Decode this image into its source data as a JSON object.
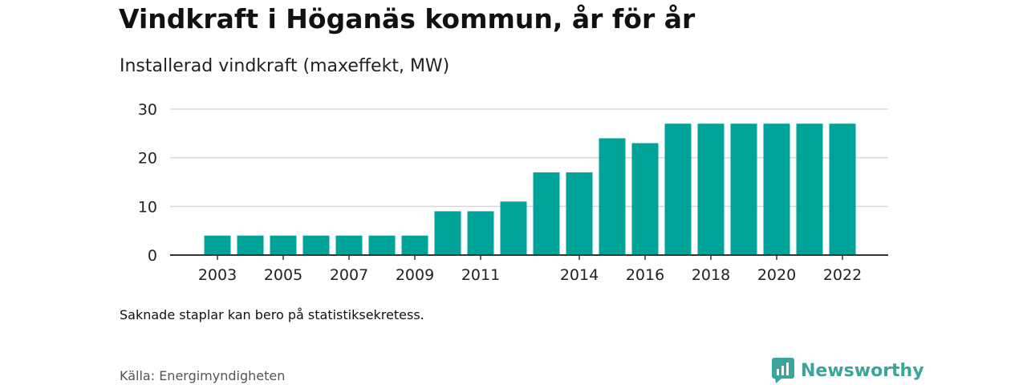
{
  "title": "Vindkraft i Höganäs kommun, år för år",
  "subtitle": "Installerad vindkraft (maxeffekt, MW)",
  "note": "Saknade staplar kan bero på statistiksekretess.",
  "source": "Källa: Energimyndigheten",
  "brand": {
    "name": "Newsworthy",
    "icon": "newsworthy-logo-icon",
    "color": "#3aa59a"
  },
  "colors": {
    "bar": "#00a398",
    "grid": "#d9d9d9",
    "axis": "#333333"
  },
  "chart_data": {
    "type": "bar",
    "categories": [
      "2003",
      "2004",
      "2005",
      "2006",
      "2007",
      "2008",
      "2009",
      "2010",
      "2011",
      "2012",
      "2013",
      "2014",
      "2015",
      "2016",
      "2017",
      "2018",
      "2019",
      "2020",
      "2021",
      "2022"
    ],
    "values": [
      4,
      4,
      4,
      4,
      4,
      4,
      4,
      9,
      9,
      11,
      17,
      17,
      24,
      23,
      27,
      27,
      27,
      27,
      27,
      27
    ],
    "xtick_labels": [
      "2003",
      "2005",
      "2007",
      "2009",
      "2011",
      "2014",
      "2016",
      "2018",
      "2020",
      "2022"
    ],
    "yticks": [
      0,
      10,
      20,
      30
    ],
    "ylim": [
      0,
      30
    ],
    "grid": true,
    "legend": "none"
  }
}
